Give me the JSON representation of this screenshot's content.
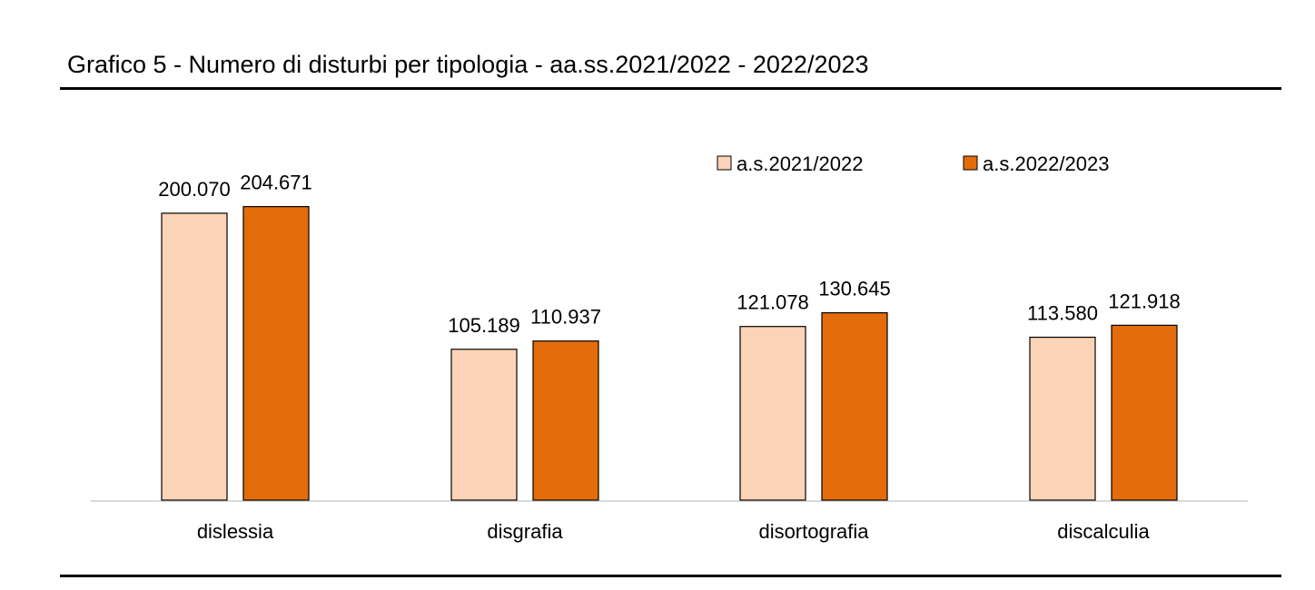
{
  "chart_data": {
    "type": "bar",
    "title": "Grafico 5 - Numero di disturbi per tipologia - aa.ss.2021/2022 - 2022/2023",
    "categories": [
      "dislessia",
      "disgrafia",
      "disortografia",
      "discalculia"
    ],
    "series": [
      {
        "name": "a.s.2021/2022",
        "values": [
          200070,
          105189,
          121078,
          113580
        ],
        "labels": [
          "200.070",
          "105.189",
          "121.078",
          "113.580"
        ],
        "color": "#FBD3B7"
      },
      {
        "name": "a.s.2022/2023",
        "values": [
          204671,
          110937,
          130645,
          121918
        ],
        "labels": [
          "204.671",
          "110.937",
          "130.645",
          "121.918"
        ],
        "color": "#E46C0A"
      }
    ],
    "ylim": [
      0,
      220000
    ],
    "xlabel": "",
    "ylabel": "",
    "grid": false,
    "legend_position": "top-right",
    "bar_outline_color": "#000000",
    "axis_color": "#D9D9D9"
  }
}
